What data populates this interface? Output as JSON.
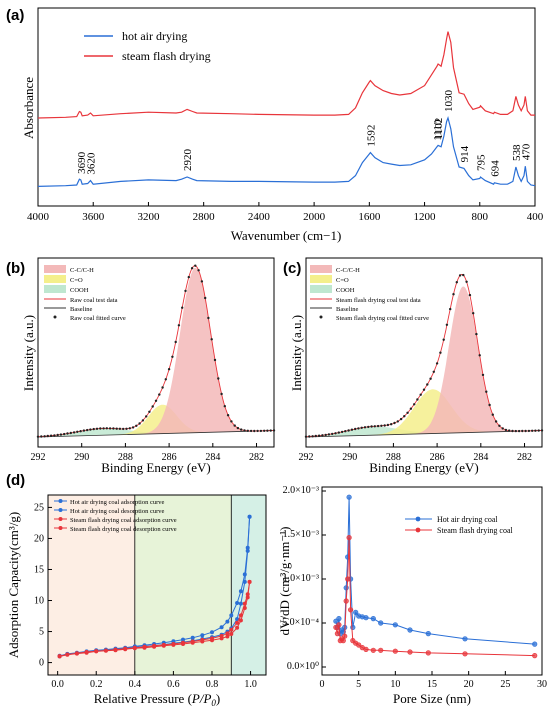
{
  "panels": {
    "a": {
      "letter": "(a)",
      "xlabel": "Wavenumber (cm−1)",
      "ylabel": "Absorbance",
      "xticks": [
        "4000",
        "3600",
        "3200",
        "2800",
        "2400",
        "2000",
        "1600",
        "1200",
        "800",
        "400"
      ],
      "legend": [
        "hot air drying",
        "steam flash drying"
      ]
    },
    "b": {
      "letter": "(b)",
      "xlabel": "Binding Energy (eV)",
      "ylabel": "Intensity (a.u.)",
      "xticks": [
        "292",
        "290",
        "288",
        "286",
        "284",
        "282"
      ],
      "legend": [
        "C-C/C-H",
        "C=O",
        "COOH",
        "Raw coal test data",
        "Baseline",
        "Raw coal fitted curve"
      ]
    },
    "c": {
      "letter": "(c)",
      "xlabel": "Binding Energy (eV)",
      "ylabel": "Intensity (a.u.)",
      "xticks": [
        "292",
        "290",
        "288",
        "286",
        "284",
        "282"
      ],
      "legend": [
        "C-C/C-H",
        "C=O",
        "COOH",
        "Steam flash drying coal test data",
        "Baseline",
        "Steam flash drying coal fitted curve"
      ]
    },
    "d": {
      "letter": "(d)",
      "left": {
        "xlabel_pre": "Relative Pressure (",
        "xlabel_var": "P/P",
        "xlabel_sub": "0",
        "xlabel_post": ")",
        "ylabel": "Adsorption Capacity(cm³/g)",
        "xticks": [
          "0.0",
          "0.2",
          "0.4",
          "0.6",
          "0.8",
          "1.0"
        ],
        "yticks": [
          "0",
          "5",
          "10",
          "15",
          "20",
          "25"
        ],
        "legend": [
          "Hot air drying coal adsorption curve",
          "Hot air drying coal desorption curve",
          "Steam flash drying coal adsorption curve",
          "Steam flash drying coal desorption curve"
        ]
      },
      "right": {
        "xlabel": "Pore Size (nm)",
        "ylabel": "dV/dD (cm³/g·nm⁻¹)",
        "xticks": [
          "0",
          "5",
          "10",
          "15",
          "20",
          "25",
          "30"
        ],
        "yticks": [
          "0.0×10⁰",
          "5.0×10⁻⁴",
          "1.0×10⁻³",
          "1.5×10⁻³",
          "2.0×10⁻³"
        ],
        "legend": [
          "Hot air drying coal",
          "Steam flash drying coal"
        ]
      }
    }
  },
  "colors": {
    "hot_air": "#2a6fd6",
    "steam": "#e8353b",
    "cc_fill": "#f3b9b9",
    "co_fill": "#f4ef8c",
    "cooh_fill": "#bfe7d0",
    "bet_region1": "#fdeee4",
    "bet_region2": "#e7f3d8",
    "bet_region3": "#d5f0e6"
  },
  "chart_data": [
    {
      "panel": "a",
      "type": "line",
      "x_range": [
        4000,
        400
      ],
      "series": [
        {
          "name": "hot air drying",
          "x": [
            4000,
            3800,
            3720,
            3700,
            3690,
            3680,
            3640,
            3620,
            3600,
            3400,
            3200,
            3000,
            2960,
            2920,
            2880,
            2850,
            2600,
            2400,
            2000,
            1850,
            1750,
            1700,
            1650,
            1600,
            1592,
            1560,
            1500,
            1440,
            1380,
            1300,
            1200,
            1150,
            1110,
            1102,
            1080,
            1060,
            1040,
            1030,
            1010,
            990,
            950,
            914,
            880,
            850,
            800,
            795,
            760,
            700,
            694,
            650,
            600,
            560,
            538,
            520,
            500,
            480,
            470,
            455,
            430,
            400
          ],
          "y": [
            0.05,
            0.06,
            0.07,
            0.15,
            0.14,
            0.08,
            0.09,
            0.13,
            0.08,
            0.12,
            0.14,
            0.13,
            0.15,
            0.18,
            0.15,
            0.13,
            0.12,
            0.12,
            0.11,
            0.11,
            0.12,
            0.2,
            0.38,
            0.5,
            0.52,
            0.45,
            0.38,
            0.36,
            0.34,
            0.35,
            0.42,
            0.5,
            0.6,
            0.62,
            0.6,
            0.75,
            0.95,
            1.0,
            0.85,
            0.6,
            0.32,
            0.3,
            0.2,
            0.14,
            0.16,
            0.18,
            0.13,
            0.08,
            0.1,
            0.08,
            0.08,
            0.12,
            0.32,
            0.2,
            0.12,
            0.2,
            0.33,
            0.12,
            0.07,
            0.06
          ]
        },
        {
          "name": "steam flash drying",
          "x": [
            4000,
            3800,
            3720,
            3700,
            3690,
            3680,
            3640,
            3620,
            3600,
            3400,
            3200,
            3000,
            2960,
            2920,
            2880,
            2850,
            2600,
            2400,
            2000,
            1850,
            1750,
            1700,
            1650,
            1600,
            1592,
            1560,
            1500,
            1440,
            1380,
            1300,
            1200,
            1150,
            1110,
            1102,
            1080,
            1060,
            1040,
            1030,
            1010,
            990,
            950,
            914,
            880,
            850,
            800,
            795,
            760,
            700,
            694,
            650,
            600,
            560,
            538,
            520,
            500,
            480,
            470,
            455,
            430,
            400
          ],
          "y": [
            1.0,
            1.01,
            1.02,
            1.09,
            1.08,
            1.03,
            1.04,
            1.07,
            1.03,
            1.06,
            1.08,
            1.07,
            1.08,
            1.12,
            1.09,
            1.07,
            1.06,
            1.05,
            1.04,
            1.04,
            1.05,
            1.14,
            1.35,
            1.5,
            1.52,
            1.45,
            1.38,
            1.34,
            1.32,
            1.34,
            1.45,
            1.6,
            1.72,
            1.75,
            1.72,
            1.88,
            2.1,
            2.2,
            2.05,
            1.7,
            1.35,
            1.33,
            1.2,
            1.12,
            1.15,
            1.17,
            1.1,
            1.06,
            1.08,
            1.05,
            1.05,
            1.1,
            1.3,
            1.18,
            1.1,
            1.18,
            1.3,
            1.1,
            1.04,
            1.04
          ]
        }
      ],
      "annotations": [
        "3690",
        "3620",
        "2920",
        "1592",
        "1102",
        "1030",
        "1110",
        "914",
        "795",
        "694",
        "538",
        "470"
      ]
    },
    {
      "panel": "b",
      "type": "line",
      "x_range": [
        292,
        281.2
      ],
      "components": [
        {
          "name": "C-C/C-H",
          "center": 284.8,
          "height": 0.97,
          "width": 0.7
        },
        {
          "name": "C=O",
          "center": 286.3,
          "height": 0.17,
          "width": 0.65
        },
        {
          "name": "COOH",
          "center": 289.0,
          "height": 0.04,
          "width": 1.2
        }
      ]
    },
    {
      "panel": "c",
      "type": "line",
      "x_range": [
        292,
        281.2
      ],
      "components": [
        {
          "name": "C-C/C-H",
          "center": 284.8,
          "height": 0.86,
          "width": 0.65
        },
        {
          "name": "C=O",
          "center": 286.2,
          "height": 0.26,
          "width": 0.85
        },
        {
          "name": "COOH",
          "center": 288.9,
          "height": 0.05,
          "width": 1.2
        }
      ]
    },
    {
      "panel": "d-left",
      "type": "line",
      "xlabel": "Relative Pressure (P/P0)",
      "x_range": [
        -0.05,
        1.08
      ],
      "y_range": [
        -2,
        27
      ],
      "region_boundaries": [
        0.4,
        0.9
      ],
      "x": [
        0.01,
        0.05,
        0.1,
        0.15,
        0.2,
        0.25,
        0.3,
        0.35,
        0.4,
        0.45,
        0.5,
        0.55,
        0.6,
        0.65,
        0.7,
        0.75,
        0.8,
        0.85,
        0.88,
        0.9,
        0.93,
        0.95,
        0.97,
        0.985,
        0.995
      ],
      "series": [
        {
          "name": "Hot air drying coal adsorption curve",
          "values": [
            1.0,
            1.3,
            1.5,
            1.7,
            1.9,
            2.0,
            2.15,
            2.3,
            2.45,
            2.6,
            2.75,
            2.9,
            3.1,
            3.3,
            3.5,
            3.8,
            4.1,
            4.5,
            5.0,
            5.5,
            7.0,
            9.5,
            13.0,
            18.0,
            23.5
          ]
        },
        {
          "name": "Hot air drying coal desorption curve",
          "values": [
            1.1,
            1.4,
            1.6,
            1.8,
            2.0,
            2.1,
            2.25,
            2.4,
            2.6,
            2.8,
            3.0,
            3.2,
            3.45,
            3.7,
            4.0,
            4.4,
            4.9,
            5.7,
            6.6,
            7.6,
            9.6,
            11.5,
            14.2,
            18.5,
            23.5
          ]
        },
        {
          "name": "Steam flash drying coal adsorption curve",
          "values": [
            1.0,
            1.25,
            1.45,
            1.6,
            1.8,
            1.9,
            2.0,
            2.15,
            2.3,
            2.4,
            2.55,
            2.7,
            2.85,
            3.0,
            3.2,
            3.4,
            3.6,
            3.9,
            4.2,
            4.6,
            5.6,
            6.8,
            8.8,
            10.5,
            13.0
          ]
        },
        {
          "name": "Steam flash drying coal desorption curve",
          "values": [
            1.05,
            1.3,
            1.5,
            1.7,
            1.85,
            1.95,
            2.1,
            2.25,
            2.4,
            2.55,
            2.7,
            2.85,
            3.0,
            3.2,
            3.4,
            3.65,
            3.9,
            4.3,
            4.7,
            5.3,
            6.4,
            7.6,
            9.5,
            11.0,
            13.0
          ]
        }
      ]
    },
    {
      "panel": "d-right",
      "type": "line",
      "xlabel": "Pore Size (nm)",
      "x_range": [
        0,
        30
      ],
      "y_range": [
        0,
        0.002
      ],
      "series": [
        {
          "name": "Hot air drying coal",
          "x": [
            1.9,
            2.1,
            2.3,
            2.5,
            2.7,
            2.9,
            3.1,
            3.3,
            3.5,
            3.7,
            3.9,
            4.2,
            4.6,
            5.0,
            5.5,
            6.0,
            7.0,
            8.0,
            10.0,
            12.0,
            14.5,
            19.5,
            29.0
          ],
          "values": [
            0.00052,
            0.00045,
            0.00055,
            0.00038,
            0.00042,
            0.0004,
            0.00045,
            0.0009,
            0.00125,
            0.00193,
            0.001,
            0.00045,
            0.00062,
            0.00058,
            0.00057,
            0.00056,
            0.00055,
            0.0005,
            0.00048,
            0.00042,
            0.00038,
            0.00032,
            0.00026
          ]
        },
        {
          "name": "Steam flash drying coal",
          "x": [
            1.9,
            2.1,
            2.3,
            2.5,
            2.7,
            2.9,
            3.1,
            3.3,
            3.5,
            3.7,
            3.9,
            4.2,
            4.6,
            5.0,
            5.5,
            6.0,
            7.0,
            8.0,
            10.0,
            12.0,
            14.5,
            19.5,
            29.0
          ],
          "values": [
            0.00045,
            0.00038,
            0.00048,
            0.0003,
            0.00032,
            0.0003,
            0.00035,
            0.00075,
            0.001,
            0.00147,
            0.00065,
            0.0003,
            0.00027,
            0.00025,
            0.00022,
            0.0002,
            0.00019,
            0.00019,
            0.00018,
            0.00017,
            0.00016,
            0.00015,
            0.00013
          ]
        }
      ]
    }
  ]
}
